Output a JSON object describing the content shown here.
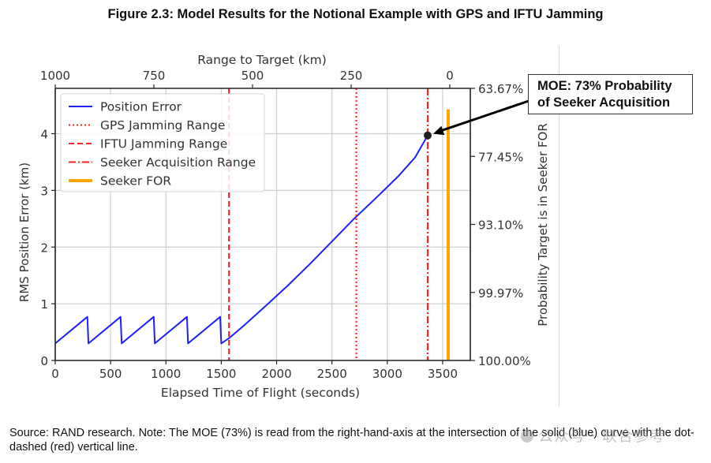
{
  "figure": {
    "title": "Figure 2.3: Model Results for the Notional Example with GPS and IFTU Jamming",
    "source_note": "Source: RAND research. Note: The MOE (73%) is read from the right-hand-axis at the intersection of the solid (blue) curve with the dot-dashed (red) vertical line.",
    "watermark": "公众号 · 联合参考",
    "annotation": "MOE: 73% Probability of Seeker Acquisition",
    "annotation_lines": [
      "MOE: 73% Probability",
      "of Seeker Acquisition"
    ]
  },
  "chart_data": {
    "type": "line",
    "title": "",
    "xlabel": "Elapsed Time of Flight (seconds)",
    "ylabel": "RMS Position Error (km)",
    "x2label": "Range to Target (km)",
    "y2label": "Probability Target is in Seeker FOR",
    "xlim": [
      0,
      3750
    ],
    "ylim": [
      0,
      4.8
    ],
    "x2lim": [
      1000,
      -50
    ],
    "grid": true,
    "legend_position": "upper-left",
    "xticks": [
      0,
      500,
      1000,
      1500,
      2000,
      2500,
      3000,
      3500
    ],
    "xtick_labels": [
      "0",
      "500",
      "1000",
      "1500",
      "2000",
      "2500",
      "3000",
      "3500"
    ],
    "yticks": [
      0,
      1,
      2,
      3,
      4
    ],
    "ytick_labels": [
      "0",
      "1",
      "2",
      "3",
      "4"
    ],
    "x2ticks": [
      1000,
      750,
      500,
      250,
      0
    ],
    "x2tick_labels": [
      "1000",
      "750",
      "500",
      "250",
      "0"
    ],
    "y2ticks": [
      4.8,
      3.6,
      2.4,
      1.2,
      0
    ],
    "y2tick_labels": [
      "63.67%",
      "77.45%",
      "93.10%",
      "99.97%",
      "100.00%"
    ],
    "series": [
      {
        "name": "Position Error",
        "style": "solid",
        "color": "#1f1fff",
        "x": [
          0,
          290,
          300,
          590,
          600,
          890,
          900,
          1190,
          1200,
          1490,
          1500,
          1575,
          1700,
          1900,
          2100,
          2300,
          2500,
          2700,
          2900,
          3100,
          3250,
          3365
        ],
        "y": [
          0.3,
          0.77,
          0.3,
          0.77,
          0.3,
          0.77,
          0.3,
          0.77,
          0.3,
          0.77,
          0.3,
          0.4,
          0.61,
          0.96,
          1.32,
          1.7,
          2.1,
          2.5,
          2.87,
          3.25,
          3.58,
          3.97
        ]
      },
      {
        "name": "GPS Jamming Range",
        "style": "dotted",
        "color": "#ff2222",
        "x_value": 2720
      },
      {
        "name": "IFTU Jamming Range",
        "style": "dashed",
        "color": "#ff2222",
        "x_value": 1570
      },
      {
        "name": "Seeker Acquisition Range",
        "style": "dashdot",
        "color": "#ff2222",
        "x_value": 3365
      },
      {
        "name": "Seeker FOR",
        "style": "solid-thick",
        "color": "#ffa500",
        "x_value": 3550,
        "y_top": 4.43
      }
    ],
    "marker": {
      "label": "MOE point",
      "x": 3365,
      "y": 3.97,
      "color": "#222222"
    }
  }
}
